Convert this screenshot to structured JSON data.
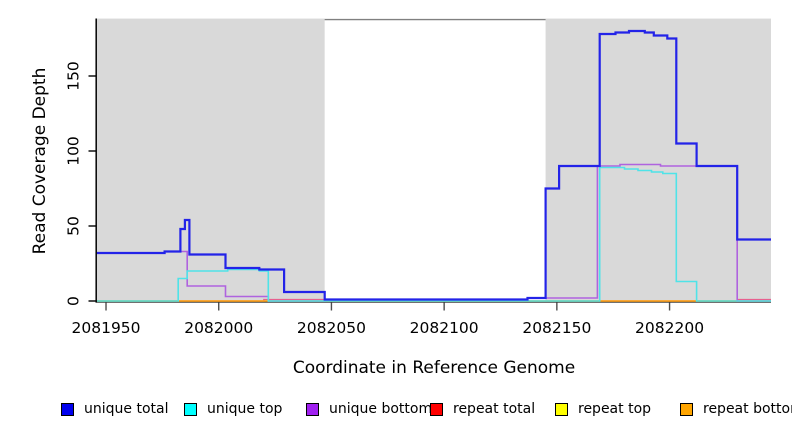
{
  "chart_data": {
    "type": "line",
    "subtype": "step-after-coverage-plot",
    "title": "",
    "xlabel": "Coordinate in Reference Genome",
    "ylabel": "Read Coverage Depth",
    "x_range": [
      2081946,
      2082245
    ],
    "y_range": [
      0,
      188
    ],
    "x_ticks": [
      2081950,
      2082000,
      2082050,
      2082100,
      2082150,
      2082200
    ],
    "y_ticks": [
      0,
      50,
      100,
      150
    ],
    "grid": false,
    "shade_color": "#D9D9D9",
    "shaded_regions": [
      [
        2081946,
        2082047
      ],
      [
        2082145,
        2082245
      ]
    ],
    "series": [
      {
        "name": "repeat total",
        "color": "#E8608E",
        "width": 1.3,
        "points": [
          [
            2081946,
            0
          ],
          [
            2082020,
            1
          ],
          [
            2082047,
            0
          ],
          [
            2082230,
            1
          ]
        ]
      },
      {
        "name": "repeat top",
        "color": "#F0F000",
        "width": 1.2,
        "points": [
          [
            2081946,
            0
          ]
        ]
      },
      {
        "name": "repeat bottom",
        "color": "#FF9E1B",
        "width": 1.6,
        "points": [
          [
            2081946,
            0
          ]
        ]
      },
      {
        "name": "unique bottom",
        "color": "#AF63DF",
        "width": 1.6,
        "points": [
          [
            2081946,
            32
          ],
          [
            2081976,
            33
          ],
          [
            2081986,
            10
          ],
          [
            2082003,
            3
          ],
          [
            2082022,
            0
          ],
          [
            2082047,
            1
          ],
          [
            2082137,
            2
          ],
          [
            2082168,
            90
          ],
          [
            2082178,
            91
          ],
          [
            2082196,
            90
          ],
          [
            2082230,
            0
          ]
        ]
      },
      {
        "name": "unique top",
        "color": "#4FE3E8",
        "width": 1.6,
        "points": [
          [
            2081946,
            0
          ],
          [
            2081982,
            15
          ],
          [
            2081986,
            20
          ],
          [
            2082004,
            21
          ],
          [
            2082018,
            20
          ],
          [
            2082022,
            0
          ],
          [
            2082169,
            89
          ],
          [
            2082180,
            88
          ],
          [
            2082186,
            87
          ],
          [
            2082192,
            86
          ],
          [
            2082197,
            85
          ],
          [
            2082203,
            13
          ],
          [
            2082212,
            0
          ]
        ]
      },
      {
        "name": "unique total",
        "color": "#2323E8",
        "width": 2.2,
        "points": [
          [
            2081946,
            32
          ],
          [
            2081976,
            33
          ],
          [
            2081983,
            48
          ],
          [
            2081985,
            54
          ],
          [
            2081987,
            31
          ],
          [
            2082003,
            22
          ],
          [
            2082018,
            21
          ],
          [
            2082029,
            6
          ],
          [
            2082047,
            1
          ],
          [
            2082137,
            2
          ],
          [
            2082145,
            75
          ],
          [
            2082151,
            90
          ],
          [
            2082169,
            178
          ],
          [
            2082176,
            179
          ],
          [
            2082182,
            180
          ],
          [
            2082189,
            179
          ],
          [
            2082193,
            177
          ],
          [
            2082199,
            175
          ],
          [
            2082203,
            105
          ],
          [
            2082212,
            90
          ],
          [
            2082230,
            41
          ]
        ]
      }
    ],
    "legend": [
      {
        "label": "unique total",
        "color": "#0000EE"
      },
      {
        "label": "unique top",
        "color": "#00FFFF"
      },
      {
        "label": "unique bottom",
        "color": "#A020F0"
      },
      {
        "label": "repeat total",
        "color": "#FF0000"
      },
      {
        "label": "repeat top",
        "color": "#FFFF00"
      },
      {
        "label": "repeat bottom",
        "color": "#FFA500"
      }
    ],
    "legend_position": "bottom"
  }
}
